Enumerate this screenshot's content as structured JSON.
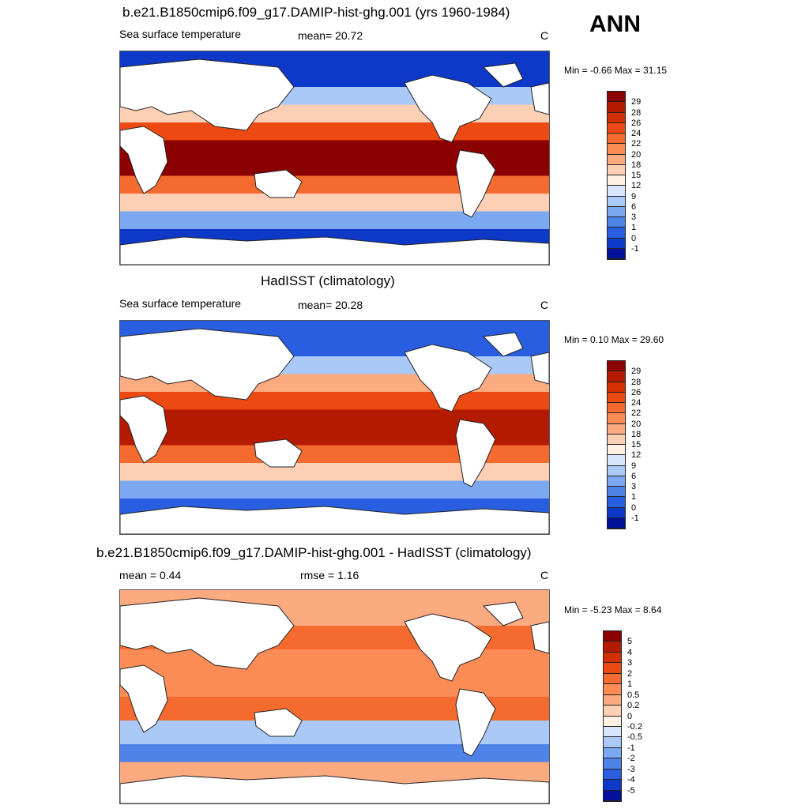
{
  "season": "ANN",
  "panels": [
    {
      "id": "model",
      "title": "b.e21.B1850cmip6.f09_g17.DAMIP-hist-ghg.001 (yrs 1960-1984)",
      "left_label": "Sea surface temperature",
      "center_label": "mean=  20.72",
      "units": "C",
      "minmax": "Min =  -0.66 Max =  31.15",
      "colorbar": {
        "labels": [
          "29",
          "28",
          "26",
          "24",
          "22",
          "20",
          "18",
          "15",
          "12",
          "9",
          "6",
          "3",
          "1",
          "0",
          "-1"
        ],
        "colors": [
          "#8b0000",
          "#b31a00",
          "#d42f00",
          "#ec4a12",
          "#f56a2e",
          "#fb8c55",
          "#fcaa80",
          "#fdd0b5",
          "#fff0e2",
          "#d8e6fb",
          "#aac9f7",
          "#7ba8f1",
          "#4f83e8",
          "#2a5ee0",
          "#0d38c8",
          "#02109a"
        ]
      },
      "field": {
        "bands": [
          {
            "lat_range": [
              60,
              90
            ],
            "value": -1
          },
          {
            "lat_range": [
              45,
              60
            ],
            "value": 6
          },
          {
            "lat_range": [
              30,
              45
            ],
            "value": 17
          },
          {
            "lat_range": [
              15,
              30
            ],
            "value": 24
          },
          {
            "lat_range": [
              -15,
              15
            ],
            "value": 29
          },
          {
            "lat_range": [
              -30,
              -15
            ],
            "value": 23
          },
          {
            "lat_range": [
              -45,
              -30
            ],
            "value": 15
          },
          {
            "lat_range": [
              -60,
              -45
            ],
            "value": 5
          },
          {
            "lat_range": [
              -90,
              -60
            ],
            "value": -1
          }
        ]
      }
    },
    {
      "id": "obs",
      "title": "HadISST (climatology)",
      "left_label": "Sea surface temperature",
      "center_label": "mean=  20.28",
      "units": "C",
      "minmax": "Min =   0.10 Max =  29.60",
      "colorbar": {
        "labels": [
          "29",
          "28",
          "26",
          "24",
          "22",
          "20",
          "18",
          "15",
          "12",
          "9",
          "6",
          "3",
          "1",
          "0",
          "-1"
        ],
        "colors": [
          "#8b0000",
          "#b31a00",
          "#d42f00",
          "#ec4a12",
          "#f56a2e",
          "#fb8c55",
          "#fcaa80",
          "#fdd0b5",
          "#fff0e2",
          "#d8e6fb",
          "#aac9f7",
          "#7ba8f1",
          "#4f83e8",
          "#2a5ee0",
          "#0d38c8",
          "#02109a"
        ]
      },
      "field": {
        "bands": [
          {
            "lat_range": [
              60,
              90
            ],
            "value": 0
          },
          {
            "lat_range": [
              45,
              60
            ],
            "value": 8
          },
          {
            "lat_range": [
              30,
              45
            ],
            "value": 18
          },
          {
            "lat_range": [
              15,
              30
            ],
            "value": 25
          },
          {
            "lat_range": [
              -15,
              15
            ],
            "value": 28
          },
          {
            "lat_range": [
              -30,
              -15
            ],
            "value": 23
          },
          {
            "lat_range": [
              -45,
              -30
            ],
            "value": 15
          },
          {
            "lat_range": [
              -60,
              -45
            ],
            "value": 5
          },
          {
            "lat_range": [
              -90,
              -60
            ],
            "value": 0
          }
        ]
      }
    },
    {
      "id": "diff",
      "title": "b.e21.B1850cmip6.f09_g17.DAMIP-hist-ghg.001 - HadISST (climatology)",
      "left_label": "mean =   0.44",
      "center_label": "rmse =   1.16",
      "units": "C",
      "minmax": "Min =  -5.23 Max =   8.64",
      "colorbar": {
        "labels": [
          "5",
          "4",
          "3",
          "2",
          "1",
          "0.5",
          "0.2",
          "0",
          "-0.2",
          "-0.5",
          "-1",
          "-2",
          "-3",
          "-4",
          "-5"
        ],
        "colors": [
          "#8b0000",
          "#b31a00",
          "#d42f00",
          "#ec4a12",
          "#f56a2e",
          "#fb8c55",
          "#fcaa80",
          "#fdd0b5",
          "#fff0e2",
          "#d8e6fb",
          "#aac9f7",
          "#7ba8f1",
          "#4f83e8",
          "#2a5ee0",
          "#0d38c8",
          "#02109a"
        ]
      },
      "field": {
        "bands": [
          {
            "lat_range": [
              60,
              90
            ],
            "value": 0.3
          },
          {
            "lat_range": [
              40,
              60
            ],
            "value": 1.5
          },
          {
            "lat_range": [
              20,
              40
            ],
            "value": 0.8
          },
          {
            "lat_range": [
              0,
              20
            ],
            "value": 0.6
          },
          {
            "lat_range": [
              -20,
              0
            ],
            "value": 1.2
          },
          {
            "lat_range": [
              -40,
              -20
            ],
            "value": -0.8
          },
          {
            "lat_range": [
              -55,
              -40
            ],
            "value": -2.5
          },
          {
            "lat_range": [
              -90,
              -55
            ],
            "value": 0.3
          }
        ]
      }
    }
  ]
}
